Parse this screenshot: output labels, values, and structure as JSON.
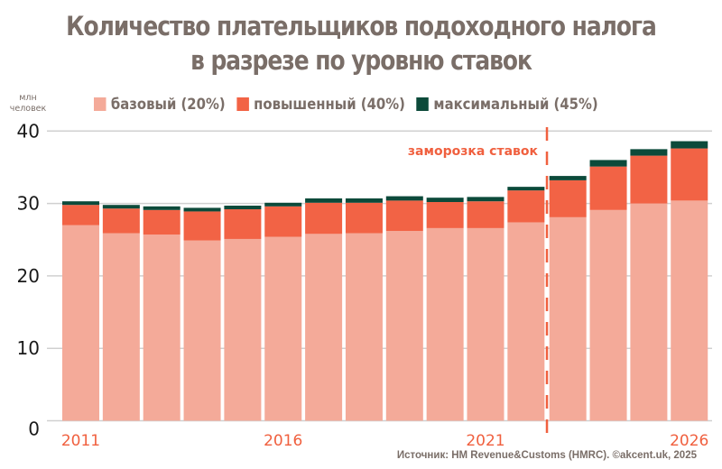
{
  "chart_data": {
    "type": "bar",
    "stacked": true,
    "title": "Количество плательщиков подоходного налога в разрезе по уровню ставок",
    "title_lines": [
      "Количество плательщиков подоходного налога",
      "в разрезе по уровню ставок"
    ],
    "ylabel": "млн человек",
    "ylabel_lines": [
      "млн",
      "человек"
    ],
    "xlabel": "",
    "ylim": [
      0,
      40
    ],
    "yticks": [
      0,
      10,
      20,
      30,
      40
    ],
    "grid": true,
    "categories": [
      2011,
      2012,
      2013,
      2014,
      2015,
      2016,
      2017,
      2018,
      2019,
      2020,
      2021,
      2022,
      2023,
      2024,
      2025,
      2026
    ],
    "xtick_labels": [
      "2011",
      "2016",
      "2021",
      "2026"
    ],
    "series": [
      {
        "name": "базовый (20%)",
        "color": "#f4aa99",
        "values": [
          27.0,
          25.9,
          25.7,
          24.9,
          25.1,
          25.4,
          25.8,
          25.9,
          26.2,
          26.6,
          26.6,
          27.4,
          28.1,
          29.1,
          30.0,
          30.4
        ]
      },
      {
        "name": "повышенный (40%)",
        "color": "#f26345",
        "values": [
          2.8,
          3.4,
          3.4,
          4.0,
          4.1,
          4.2,
          4.3,
          4.2,
          4.2,
          3.6,
          3.7,
          4.4,
          5.1,
          6.0,
          6.6,
          7.2
        ]
      },
      {
        "name": "максимальный (45%)",
        "color": "#0c4a3a",
        "values": [
          0.5,
          0.5,
          0.5,
          0.5,
          0.5,
          0.5,
          0.6,
          0.6,
          0.6,
          0.6,
          0.6,
          0.5,
          0.6,
          0.9,
          0.9,
          1.0
        ]
      }
    ],
    "legend_position": "top",
    "annotations": [
      {
        "text": "заморозка ставок",
        "between": [
          2022,
          2023
        ],
        "style": "dashed-vertical-line",
        "color": "#f0603f"
      }
    ],
    "source": "Источник: HM Revenue&Customs (HMRC). ©akcent.uk, 2025"
  }
}
